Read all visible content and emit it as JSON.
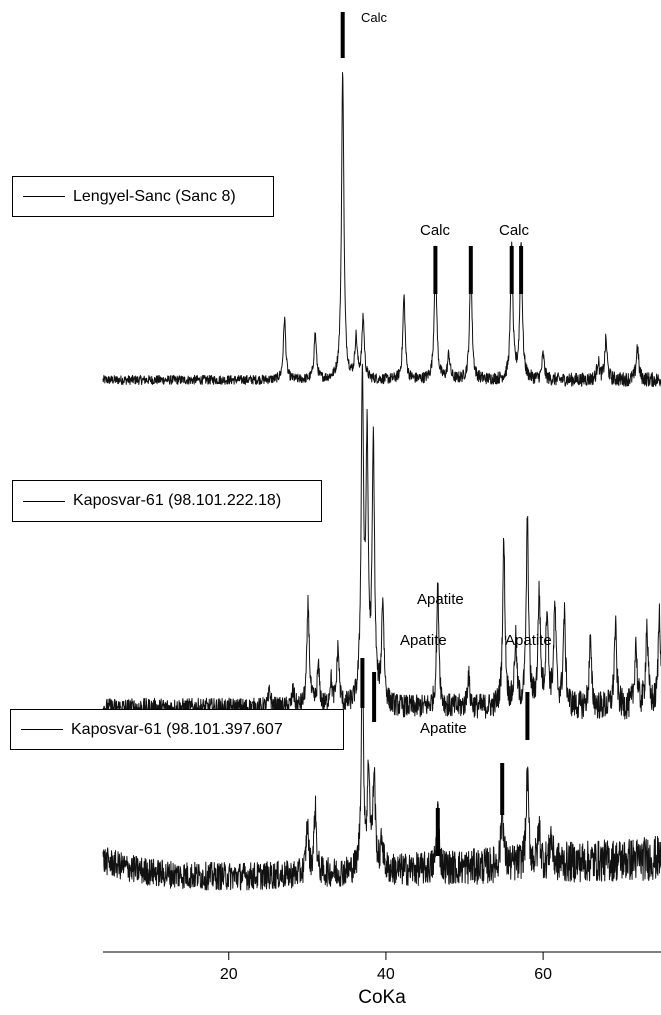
{
  "chart_data": {
    "type": "line",
    "title": "",
    "xlabel": "CoKa",
    "ylabel": "",
    "xlim": [
      4,
      75
    ],
    "xticks": [
      20,
      40,
      60
    ],
    "grid": false,
    "series": [
      {
        "name": "Lengyel-Sanc (Sanc 8)",
        "baseline_noise": 0.015,
        "peaks": [
          {
            "x": 27.1,
            "y": 0.2
          },
          {
            "x": 31.0,
            "y": 0.15
          },
          {
            "x": 34.5,
            "y": 1.0
          },
          {
            "x": 36.2,
            "y": 0.13
          },
          {
            "x": 37.1,
            "y": 0.2
          },
          {
            "x": 42.3,
            "y": 0.27
          },
          {
            "x": 46.3,
            "y": 0.42
          },
          {
            "x": 48.0,
            "y": 0.08
          },
          {
            "x": 50.8,
            "y": 0.37
          },
          {
            "x": 56.0,
            "y": 0.42
          },
          {
            "x": 57.2,
            "y": 0.44
          },
          {
            "x": 60.0,
            "y": 0.08
          },
          {
            "x": 67.0,
            "y": 0.06
          },
          {
            "x": 68.0,
            "y": 0.13
          },
          {
            "x": 72.0,
            "y": 0.11
          }
        ]
      },
      {
        "name": "Kaposvar-61 (98.101.222.18)",
        "baseline_noise": 0.03,
        "peaks": [
          {
            "x": 25.2,
            "y": 0.05
          },
          {
            "x": 28.2,
            "y": 0.05
          },
          {
            "x": 30.1,
            "y": 0.32
          },
          {
            "x": 31.4,
            "y": 0.12
          },
          {
            "x": 33.0,
            "y": 0.08
          },
          {
            "x": 33.9,
            "y": 0.18
          },
          {
            "x": 37.0,
            "y": 1.0
          },
          {
            "x": 37.6,
            "y": 0.77
          },
          {
            "x": 38.4,
            "y": 0.79
          },
          {
            "x": 39.6,
            "y": 0.32
          },
          {
            "x": 46.6,
            "y": 0.37
          },
          {
            "x": 50.5,
            "y": 0.1
          },
          {
            "x": 55.0,
            "y": 0.51
          },
          {
            "x": 56.5,
            "y": 0.2
          },
          {
            "x": 58.0,
            "y": 0.57
          },
          {
            "x": 59.5,
            "y": 0.35
          },
          {
            "x": 60.5,
            "y": 0.3
          },
          {
            "x": 61.5,
            "y": 0.3
          },
          {
            "x": 62.7,
            "y": 0.28
          },
          {
            "x": 66.0,
            "y": 0.2
          },
          {
            "x": 69.2,
            "y": 0.25
          },
          {
            "x": 71.8,
            "y": 0.2
          },
          {
            "x": 73.2,
            "y": 0.25
          },
          {
            "x": 74.8,
            "y": 0.3
          }
        ]
      },
      {
        "name": "Kaposvar-61 (98.101.397.607",
        "baseline_noise": 0.07,
        "peaks": [
          {
            "x": 30.0,
            "y": 0.25
          },
          {
            "x": 31.0,
            "y": 0.33
          },
          {
            "x": 37.0,
            "y": 1.0
          },
          {
            "x": 37.8,
            "y": 0.5
          },
          {
            "x": 38.5,
            "y": 0.47
          },
          {
            "x": 39.5,
            "y": 0.15
          },
          {
            "x": 46.6,
            "y": 0.3
          },
          {
            "x": 54.8,
            "y": 0.3
          },
          {
            "x": 58.0,
            "y": 0.45
          },
          {
            "x": 59.5,
            "y": 0.18
          },
          {
            "x": 61.0,
            "y": 0.14
          }
        ]
      }
    ],
    "annotations": [
      {
        "text": "Calc",
        "x": 34.5,
        "series": 0,
        "markers": [
          34.5
        ]
      },
      {
        "text": "Calc",
        "x": 46.3,
        "series": 0,
        "markers": [
          46.3
        ]
      },
      {
        "text": "",
        "x": 50.8,
        "series": 0,
        "markers": [
          50.8
        ]
      },
      {
        "text": "Calc",
        "x": 56.5,
        "series": 0,
        "markers": [
          56.0,
          57.2
        ]
      },
      {
        "text": "Apatite",
        "x": 49.0,
        "series": 1,
        "markers": []
      },
      {
        "text": "Apatite",
        "x": 44.5,
        "series": 2,
        "markers": [
          37.0,
          38.5
        ]
      },
      {
        "text": "Apatite",
        "x": 58.0,
        "series": 2,
        "markers": [
          58.0
        ]
      },
      {
        "text": "Apatite",
        "x": 49.0,
        "series": 2,
        "markers": [
          46.6
        ]
      },
      {
        "text": "",
        "x": 54.8,
        "series": 2,
        "markers": [
          54.8
        ]
      }
    ]
  }
}
